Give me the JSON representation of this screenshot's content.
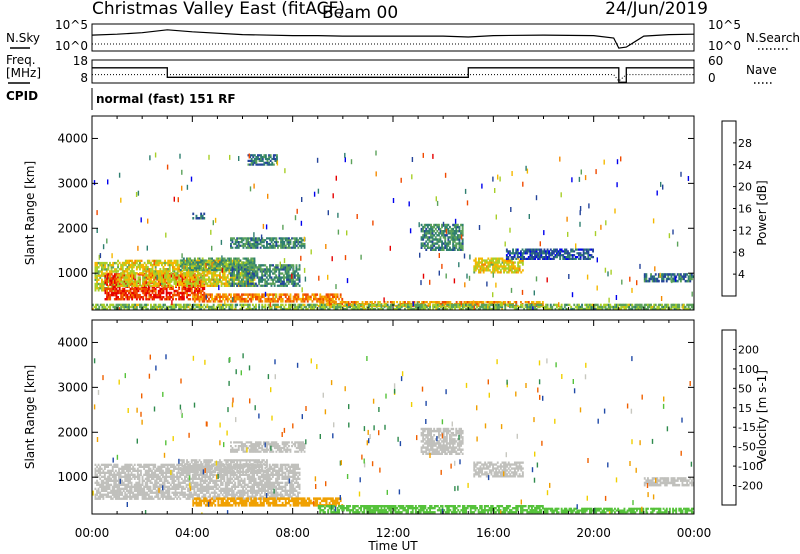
{
  "header": {
    "title": "Christmas Valley East (fitACF)",
    "beam": "Beam 00",
    "date": "24/Jun/2019"
  },
  "top_panels": {
    "nsky_label": "N.Sky",
    "nsearch_label": "N.Search",
    "nsky_ticks": [
      "10^5",
      "10^0"
    ],
    "nsearch_ticks": [
      "10^5",
      "10^0"
    ],
    "freq_label": "Freq.",
    "freq_unit": "[MHz]",
    "freq_ticks": [
      "18",
      "8"
    ],
    "nave_label": "Nave",
    "nave_ticks": [
      "60",
      "0"
    ],
    "cpid_label": "CPID",
    "cpid_text": "normal (fast) 151 RF"
  },
  "x_axis": {
    "label": "Time UT",
    "ticks": [
      "00:00",
      "04:00",
      "08:00",
      "12:00",
      "16:00",
      "20:00",
      "00:00"
    ]
  },
  "colors": {
    "power_scale": [
      "#0000ee",
      "#24449b",
      "#2f7f70",
      "#5ba25a",
      "#a8cf28",
      "#f5b800",
      "#f58a00",
      "#f04a00",
      "#e60000"
    ],
    "velocity_scale": [
      "#2030c8",
      "#204aa8",
      "#2e8a4c",
      "#55c23a",
      "#c8c8c0",
      "#f0d000",
      "#f0a000",
      "#f06000",
      "#e60000"
    ],
    "ground_scatter": "#c0c0bc"
  },
  "chart_data": [
    {
      "type": "line",
      "name": "noise-panel",
      "x": [
        0,
        1,
        2,
        3,
        4,
        6,
        8,
        9,
        10,
        12,
        14,
        15,
        16,
        18,
        20,
        20.8,
        21,
        21.3,
        22,
        23,
        24
      ],
      "series": [
        {
          "name": "N.Sky",
          "values": [
            3.1,
            3.3,
            3.6,
            4.2,
            3.8,
            3.2,
            3.0,
            3.0,
            2.9,
            2.9,
            2.9,
            2.7,
            3.0,
            3.1,
            3.0,
            2.5,
            0.4,
            0.6,
            2.9,
            3.2,
            3.3
          ]
        }
      ],
      "ylim": [
        0,
        5
      ],
      "ylabel": "N.Sky"
    },
    {
      "type": "line",
      "name": "frequency-panel",
      "x": [
        0,
        2.9,
        3.0,
        14.9,
        15.0,
        20.8,
        21.0,
        21.3,
        24
      ],
      "series": [
        {
          "name": "Freq.",
          "values": [
            14.6,
            14.6,
            10.5,
            10.5,
            14.6,
            14.6,
            8.3,
            14.6,
            14.6
          ]
        },
        {
          "name": "Nave",
          "values": [
            22,
            22,
            22,
            22,
            22,
            22,
            5,
            22,
            22
          ]
        }
      ],
      "ylim": [
        8,
        18
      ],
      "ylabel": "Freq. [MHz]"
    },
    {
      "type": "heatmap",
      "name": "power",
      "xlabel": "Time UT",
      "ylabel": "Slant Range [km]",
      "xlim": [
        0,
        24
      ],
      "ylim": [
        180,
        4500
      ],
      "y_ticks": [
        1000,
        2000,
        3000,
        4000
      ],
      "colorbar": {
        "label": "Power [dB]",
        "ticks": [
          4,
          8,
          12,
          16,
          20,
          24,
          28
        ],
        "range": [
          0,
          32
        ]
      },
      "regions": [
        {
          "t0": 0.1,
          "t1": 1.0,
          "r0": 600,
          "r1": 1250,
          "value": 16
        },
        {
          "t0": 0.5,
          "t1": 4.5,
          "r0": 400,
          "r1": 1000,
          "value": 28
        },
        {
          "t0": 1.0,
          "t1": 6.5,
          "r0": 700,
          "r1": 1300,
          "value": 18
        },
        {
          "t0": 3.5,
          "t1": 6.5,
          "r0": 1050,
          "r1": 1350,
          "value": 12
        },
        {
          "t0": 5.5,
          "t1": 8.3,
          "r0": 700,
          "r1": 1200,
          "value": 10
        },
        {
          "t0": 4.0,
          "t1": 10.0,
          "r0": 350,
          "r1": 550,
          "value": 24
        },
        {
          "t0": 9.0,
          "t1": 18.0,
          "r0": 250,
          "r1": 380,
          "value": 22
        },
        {
          "t0": 5.5,
          "t1": 8.5,
          "r0": 1550,
          "r1": 1800,
          "value": 10
        },
        {
          "t0": 4.0,
          "t1": 4.5,
          "r0": 2200,
          "r1": 2350,
          "value": 8
        },
        {
          "t0": 6.2,
          "t1": 7.4,
          "r0": 3400,
          "r1": 3650,
          "value": 8
        },
        {
          "t0": 13.1,
          "t1": 14.8,
          "r0": 1500,
          "r1": 2100,
          "value": 10
        },
        {
          "t0": 15.2,
          "t1": 17.2,
          "r0": 1000,
          "r1": 1350,
          "value": 18
        },
        {
          "t0": 16.5,
          "t1": 20.0,
          "r0": 1300,
          "r1": 1550,
          "value": 6
        },
        {
          "t0": 22.0,
          "t1": 24.0,
          "r0": 800,
          "r1": 1000,
          "value": 8
        },
        {
          "t0": 0.0,
          "t1": 24.0,
          "r0": 180,
          "r1": 320,
          "value": 14
        }
      ]
    },
    {
      "type": "heatmap",
      "name": "velocity",
      "xlabel": "Time UT",
      "ylabel": "Slant Range [km]",
      "xlim": [
        0,
        24
      ],
      "ylim": [
        180,
        4500
      ],
      "y_ticks": [
        1000,
        2000,
        3000,
        4000
      ],
      "colorbar": {
        "label": "Velocity [m s-1]",
        "ticks": [
          200,
          100,
          50,
          15,
          -15,
          -50,
          -100,
          -200
        ],
        "range": [
          -250,
          250
        ]
      },
      "regions": [
        {
          "t0": 0.1,
          "t1": 8.3,
          "r0": 500,
          "r1": 1300,
          "value": 0,
          "ground_scatter": true
        },
        {
          "t0": 3.5,
          "t1": 7.0,
          "r0": 1100,
          "r1": 1400,
          "value": 0,
          "ground_scatter": true
        },
        {
          "t0": 5.5,
          "t1": 8.5,
          "r0": 1550,
          "r1": 1800,
          "value": 0,
          "ground_scatter": true
        },
        {
          "t0": 13.1,
          "t1": 14.8,
          "r0": 1500,
          "r1": 2100,
          "value": 0,
          "ground_scatter": true
        },
        {
          "t0": 15.2,
          "t1": 17.2,
          "r0": 1000,
          "r1": 1350,
          "value": 0,
          "ground_scatter": true
        },
        {
          "t0": 4.0,
          "t1": 10.0,
          "r0": 350,
          "r1": 550,
          "value": -60
        },
        {
          "t0": 9.0,
          "t1": 18.0,
          "r0": 200,
          "r1": 380,
          "value": 30
        },
        {
          "t0": 18.0,
          "t1": 24.0,
          "r0": 200,
          "r1": 320,
          "value": 20
        },
        {
          "t0": 22.0,
          "t1": 24.0,
          "r0": 800,
          "r1": 1000,
          "value": 0,
          "ground_scatter": true
        }
      ]
    }
  ]
}
